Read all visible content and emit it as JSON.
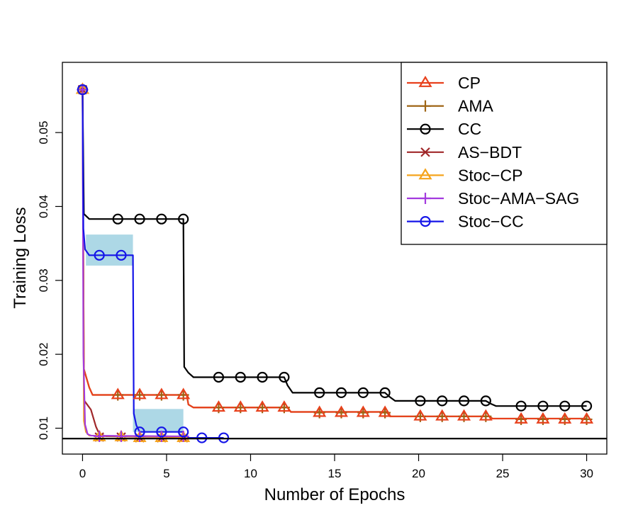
{
  "chart_data": {
    "type": "line",
    "xlabel": "Number of Epochs",
    "ylabel": "Training Loss",
    "xlim": [
      -1.2,
      31.2
    ],
    "ylim": [
      0.0065,
      0.0595
    ],
    "x_ticks": [
      0,
      5,
      10,
      15,
      20,
      25,
      30
    ],
    "y_ticks": [
      0.01,
      0.02,
      0.03,
      0.04,
      0.05
    ],
    "y_tick_labels": [
      "0.01",
      "0.02",
      "0.03",
      "0.04",
      "0.05"
    ],
    "reference_line": 0.0086,
    "legend_position": "top-right",
    "series": [
      {
        "name": "CP",
        "color": "#e8401c",
        "marker": "triangle",
        "points": [
          [
            0,
            0.0558
          ],
          [
            0.08,
            0.018
          ],
          [
            0.4,
            0.0155
          ],
          [
            0.6,
            0.0145
          ],
          [
            6.2,
            0.0145
          ],
          [
            6.3,
            0.0132
          ],
          [
            6.6,
            0.0128
          ],
          [
            12.2,
            0.0128
          ],
          [
            12.4,
            0.0122
          ],
          [
            18.1,
            0.0122
          ],
          [
            18.3,
            0.0116
          ],
          [
            24.2,
            0.0116
          ],
          [
            24.4,
            0.0113
          ],
          [
            30,
            0.0113
          ]
        ],
        "markers": [
          [
            0,
            0.0558
          ],
          [
            2.1,
            0.0145
          ],
          [
            3.4,
            0.0145
          ],
          [
            4.7,
            0.0145
          ],
          [
            6.0,
            0.0145
          ],
          [
            8.1,
            0.0128
          ],
          [
            9.4,
            0.0128
          ],
          [
            10.7,
            0.0128
          ],
          [
            12.0,
            0.0128
          ],
          [
            14.1,
            0.0121
          ],
          [
            15.4,
            0.0121
          ],
          [
            16.7,
            0.0121
          ],
          [
            18.0,
            0.0121
          ],
          [
            20.1,
            0.0116
          ],
          [
            21.4,
            0.0116
          ],
          [
            22.7,
            0.0116
          ],
          [
            24.0,
            0.0116
          ],
          [
            26.1,
            0.0112
          ],
          [
            27.4,
            0.0112
          ],
          [
            28.7,
            0.0112
          ],
          [
            30.0,
            0.0112
          ]
        ]
      },
      {
        "name": "AMA",
        "color": "#9e6414",
        "marker": "plus",
        "points": [
          [
            0,
            0.0558
          ],
          [
            0.08,
            0.018
          ],
          [
            0.4,
            0.0155
          ],
          [
            0.6,
            0.0145
          ],
          [
            6.2,
            0.0145
          ],
          [
            6.3,
            0.0132
          ],
          [
            6.6,
            0.0128
          ],
          [
            12.2,
            0.0128
          ],
          [
            12.4,
            0.0122
          ],
          [
            18.1,
            0.0122
          ],
          [
            18.3,
            0.0116
          ],
          [
            24.2,
            0.0116
          ],
          [
            24.4,
            0.0113
          ],
          [
            30,
            0.0113
          ]
        ],
        "markers": [
          [
            0,
            0.0558
          ],
          [
            2.1,
            0.0145
          ],
          [
            3.4,
            0.0145
          ],
          [
            4.7,
            0.0145
          ],
          [
            6.0,
            0.0145
          ],
          [
            8.1,
            0.0128
          ],
          [
            9.4,
            0.0128
          ],
          [
            10.7,
            0.0128
          ],
          [
            12.0,
            0.0128
          ],
          [
            14.1,
            0.0121
          ],
          [
            15.4,
            0.0121
          ],
          [
            16.7,
            0.0121
          ],
          [
            18.0,
            0.0121
          ],
          [
            20.1,
            0.0116
          ],
          [
            21.4,
            0.0116
          ],
          [
            22.7,
            0.0116
          ],
          [
            24.0,
            0.0116
          ],
          [
            26.1,
            0.0112
          ],
          [
            27.4,
            0.0112
          ],
          [
            28.7,
            0.0112
          ],
          [
            30.0,
            0.0112
          ]
        ]
      },
      {
        "name": "CC",
        "color": "#000000",
        "marker": "circle",
        "points": [
          [
            0,
            0.0558
          ],
          [
            0.08,
            0.039
          ],
          [
            0.4,
            0.0383
          ],
          [
            6.0,
            0.0383
          ],
          [
            6.05,
            0.0183
          ],
          [
            6.3,
            0.0175
          ],
          [
            6.6,
            0.0169
          ],
          [
            12.0,
            0.0169
          ],
          [
            12.2,
            0.0158
          ],
          [
            12.5,
            0.0148
          ],
          [
            18.0,
            0.0148
          ],
          [
            18.3,
            0.0142
          ],
          [
            18.6,
            0.0137
          ],
          [
            24.0,
            0.0137
          ],
          [
            24.3,
            0.0133
          ],
          [
            24.6,
            0.013
          ],
          [
            30,
            0.013
          ]
        ],
        "markers": [
          [
            0,
            0.0558
          ],
          [
            2.1,
            0.0383
          ],
          [
            3.4,
            0.0383
          ],
          [
            4.7,
            0.0383
          ],
          [
            6.0,
            0.0383
          ],
          [
            8.1,
            0.0169
          ],
          [
            9.4,
            0.0169
          ],
          [
            10.7,
            0.0169
          ],
          [
            12.0,
            0.0169
          ],
          [
            14.1,
            0.0148
          ],
          [
            15.4,
            0.0148
          ],
          [
            16.7,
            0.0148
          ],
          [
            18.0,
            0.0148
          ],
          [
            20.1,
            0.0137
          ],
          [
            21.4,
            0.0137
          ],
          [
            22.7,
            0.0137
          ],
          [
            24.0,
            0.0137
          ],
          [
            26.1,
            0.013
          ],
          [
            27.4,
            0.013
          ],
          [
            28.7,
            0.013
          ],
          [
            30.0,
            0.013
          ]
        ]
      },
      {
        "name": "AS−BDT",
        "color": "#a0282a",
        "marker": "cross",
        "points": [
          [
            0,
            0.0558
          ],
          [
            0.08,
            0.0138
          ],
          [
            0.5,
            0.0125
          ],
          [
            0.8,
            0.0102
          ],
          [
            1.0,
            0.0092
          ],
          [
            1.4,
            0.0089
          ],
          [
            6.0,
            0.0088
          ]
        ],
        "markers": [
          [
            0,
            0.0558
          ],
          [
            1.0,
            0.0088
          ],
          [
            2.3,
            0.0088
          ],
          [
            3.4,
            0.0087
          ],
          [
            4.7,
            0.0087
          ],
          [
            6.0,
            0.0087
          ]
        ]
      },
      {
        "name": "Stoc−CP",
        "color": "#f5a41c",
        "marker": "triangle",
        "points": [
          [
            0,
            0.0558
          ],
          [
            0.08,
            0.011
          ],
          [
            0.2,
            0.0095
          ],
          [
            0.4,
            0.009
          ],
          [
            6.0,
            0.0088
          ]
        ],
        "markers": [
          [
            0,
            0.0558
          ],
          [
            1.0,
            0.0088
          ],
          [
            2.3,
            0.0088
          ],
          [
            3.4,
            0.0087
          ],
          [
            4.7,
            0.0087
          ],
          [
            6.0,
            0.0087
          ]
        ]
      },
      {
        "name": "Stoc−AMA−SAG",
        "color": "#a33ade",
        "marker": "plus",
        "points": [
          [
            0,
            0.0558
          ],
          [
            0.05,
            0.02
          ],
          [
            0.15,
            0.0105
          ],
          [
            0.3,
            0.0092
          ],
          [
            0.5,
            0.009
          ],
          [
            6.0,
            0.0089
          ]
        ],
        "markers": [
          [
            0,
            0.0558
          ],
          [
            1.0,
            0.0089
          ],
          [
            2.3,
            0.0089
          ],
          [
            3.4,
            0.0089
          ],
          [
            4.7,
            0.0089
          ],
          [
            6.0,
            0.0089
          ]
        ]
      },
      {
        "name": "Stoc−CC",
        "color": "#1515e8",
        "marker": "circle",
        "points": [
          [
            0,
            0.0558
          ],
          [
            0.05,
            0.037
          ],
          [
            0.15,
            0.0342
          ],
          [
            0.4,
            0.0334
          ],
          [
            3.0,
            0.0334
          ],
          [
            3.05,
            0.012
          ],
          [
            3.2,
            0.0104
          ],
          [
            3.4,
            0.0095
          ],
          [
            6.0,
            0.0095
          ],
          [
            6.05,
            0.0087
          ],
          [
            8.4,
            0.0087
          ]
        ],
        "markers": [
          [
            0,
            0.0558
          ],
          [
            1.0,
            0.0334
          ],
          [
            2.3,
            0.0334
          ],
          [
            3.4,
            0.0095
          ],
          [
            4.7,
            0.0095
          ],
          [
            6.0,
            0.0095
          ],
          [
            7.1,
            0.0087
          ],
          [
            8.4,
            0.0087
          ]
        ],
        "band": [
          {
            "x": [
              0.2,
              3.0
            ],
            "low": 0.032,
            "high": 0.0362
          },
          {
            "x": [
              3.0,
              6.0
            ],
            "low": 0.0095,
            "high": 0.0126
          }
        ],
        "band_color": "#add8e6"
      }
    ]
  }
}
